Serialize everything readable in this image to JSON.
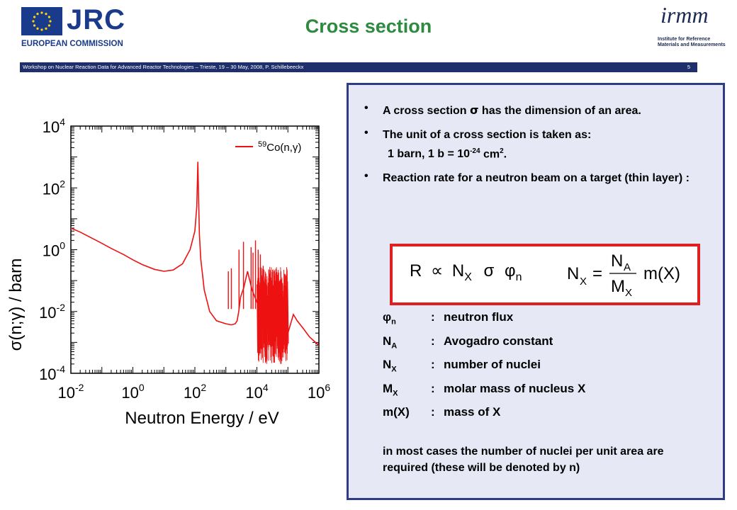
{
  "header": {
    "logo_left": {
      "text": "JRC",
      "subtext": "EUROPEAN COMMISSION"
    },
    "title": "Cross section",
    "logo_right": {
      "text": "irmm",
      "subtext": [
        "Institute for Reference",
        "Materials and Measurements"
      ]
    }
  },
  "footer_bar": {
    "text": "Workshop on Nuclear Reaction Data for Advanced Reactor Technologies  – Trieste, 19 – 30 May, 2008, P. Schillebeeckx",
    "page": "5"
  },
  "colors": {
    "title": "#2d8a3e",
    "bar": "#1f2f6b",
    "panel_bg": "#e6e8f6",
    "panel_border": "#2f3b86",
    "box_border": "#e02020",
    "curve": "#ee1111"
  },
  "chart_data": {
    "type": "line",
    "xlabel": "Neutron Energy / eV",
    "ylabel": "σ(n;γ) / barn",
    "xscale": "log",
    "yscale": "log",
    "xlim": [
      0.01,
      1000000
    ],
    "ylim": [
      0.0001,
      10000
    ],
    "x_ticks": [
      "10-2",
      "100",
      "102",
      "104",
      "106"
    ],
    "y_ticks": [
      "10-4",
      "10-2",
      "100",
      "102",
      "104"
    ],
    "legend": {
      "position": "top-right",
      "label": "59Co(n,γ)"
    },
    "series": [
      {
        "name": "59Co(n,γ)",
        "x": [
          0.01,
          0.02,
          0.05,
          0.1,
          0.2,
          0.5,
          1,
          2,
          5,
          10,
          20,
          40,
          70,
          100,
          115,
          125,
          132,
          140,
          155,
          200,
          300,
          500,
          1000,
          1500,
          2000,
          2300,
          2600,
          3000,
          3800,
          5000,
          7000,
          10000,
          15000,
          20000,
          30000,
          50000,
          70000,
          100000,
          150000,
          200000,
          300000,
          500000,
          1000000
        ],
        "y": [
          5,
          3.7,
          2.3,
          1.6,
          1.1,
          0.7,
          0.47,
          0.33,
          0.23,
          0.2,
          0.22,
          0.35,
          1.0,
          4.0,
          25,
          700,
          40,
          3,
          0.5,
          0.05,
          0.01,
          0.005,
          0.004,
          0.0037,
          0.004,
          0.005,
          0.01,
          0.03,
          0.06,
          0.2,
          0.05,
          0.02,
          0.01,
          0.005,
          0.01,
          0.002,
          0.003,
          0.002,
          0.008,
          0.005,
          0.003,
          0.0015,
          0.0008
        ]
      }
    ],
    "resonance_spikes": [
      {
        "x": 1200,
        "ymax": 0.2
      },
      {
        "x": 1500,
        "ymax": 0.25
      },
      {
        "x": 2650,
        "ymax": 1.0
      },
      {
        "x": 3700,
        "ymax": 1.8
      },
      {
        "x": 6500,
        "ymax": 1.2
      },
      {
        "x": 7500,
        "ymax": 0.8
      },
      {
        "x": 9000,
        "ymax": 2.0
      },
      {
        "x": 11000,
        "ymax": 1.0
      },
      {
        "x": 13000,
        "ymax": 0.7
      },
      {
        "x": 16000,
        "ymax": 0.3
      }
    ],
    "noise_band": {
      "x_from": 10000,
      "x_to": 100000,
      "ymin": 0.0002,
      "ymax": 0.3
    }
  },
  "bullets": [
    {
      "parts": [
        "A cross section ",
        "σ",
        " has the dimension of an area."
      ]
    },
    {
      "parts": [
        "The unit of a cross section is taken as: ",
        "1 barn, 1 b = 10",
        "-24",
        " cm",
        "2",
        "."
      ]
    },
    {
      "parts": [
        "Reaction rate for a neutron beam on a target (thin layer) :"
      ]
    }
  ],
  "formula": {
    "lhs": "R",
    "prop": "∝",
    "n": "N",
    "x_sub": "X",
    "sigma": "σ",
    "phi": "φ",
    "n_sub": "n",
    "eq_lhs": "N",
    "eq_lhs_sub": "X",
    "eq": "=",
    "frac_num": "N",
    "frac_num_sub": "A",
    "frac_den": "M",
    "frac_den_sub": "X",
    "rhs": "m(X)"
  },
  "definitions": [
    {
      "symbol": "φ",
      "sub": "n",
      "colon": ":",
      "text": "neutron flux"
    },
    {
      "symbol": "N",
      "sub": "A",
      "colon": ":",
      "text": "Avogadro constant"
    },
    {
      "symbol": "N",
      "sub": "X",
      "colon": ":",
      "text": "number of nuclei"
    },
    {
      "symbol": "M",
      "sub": "X",
      "colon": ":",
      "text": "molar mass of nucleus X"
    },
    {
      "symbol": "m(X)",
      "sub": "",
      "colon": ":",
      "text": "mass of X"
    }
  ],
  "note": "in most cases the number of nuclei per unit area are required (these will be denoted by n)"
}
